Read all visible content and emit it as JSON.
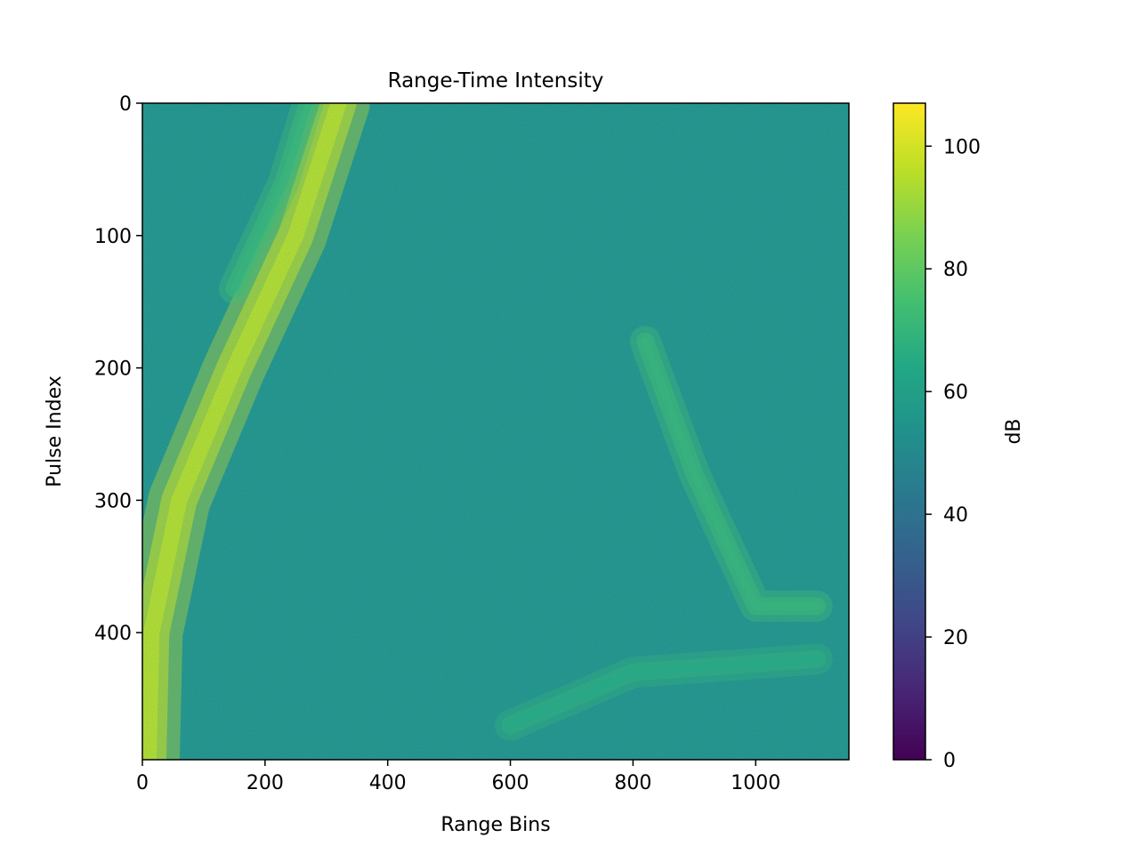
{
  "chart_data": {
    "type": "heatmap",
    "title": "Range-Time Intensity",
    "xlabel": "Range Bins",
    "ylabel": "Pulse Index",
    "xlim": [
      0,
      1152
    ],
    "ylim": [
      496,
      0
    ],
    "xticks": [
      0,
      200,
      400,
      600,
      800,
      1000
    ],
    "yticks": [
      0,
      100,
      200,
      300,
      400
    ],
    "colorbar": {
      "label": "dB",
      "min": 0,
      "max": 107,
      "ticks": [
        0,
        20,
        40,
        60,
        80,
        100
      ],
      "colormap": "viridis"
    },
    "background_level_db": 55,
    "features": [
      {
        "description": "bright diagonal ridge",
        "points": [
          [
            320,
            0
          ],
          [
            250,
            100
          ],
          [
            150,
            200
          ],
          [
            60,
            300
          ],
          [
            15,
            400
          ],
          [
            10,
            496
          ]
        ],
        "peak_db": 100
      },
      {
        "description": "faint parallel ridge",
        "points": [
          [
            270,
            0
          ],
          [
            230,
            60
          ],
          [
            150,
            140
          ]
        ],
        "peak_db": 75
      },
      {
        "description": "right curved streak",
        "points": [
          [
            820,
            180
          ],
          [
            900,
            280
          ],
          [
            1000,
            380
          ],
          [
            1100,
            380
          ]
        ],
        "peak_db": 75
      },
      {
        "description": "bottom streaks",
        "points": [
          [
            600,
            470
          ],
          [
            800,
            430
          ],
          [
            1100,
            420
          ]
        ],
        "peak_db": 70
      }
    ]
  }
}
